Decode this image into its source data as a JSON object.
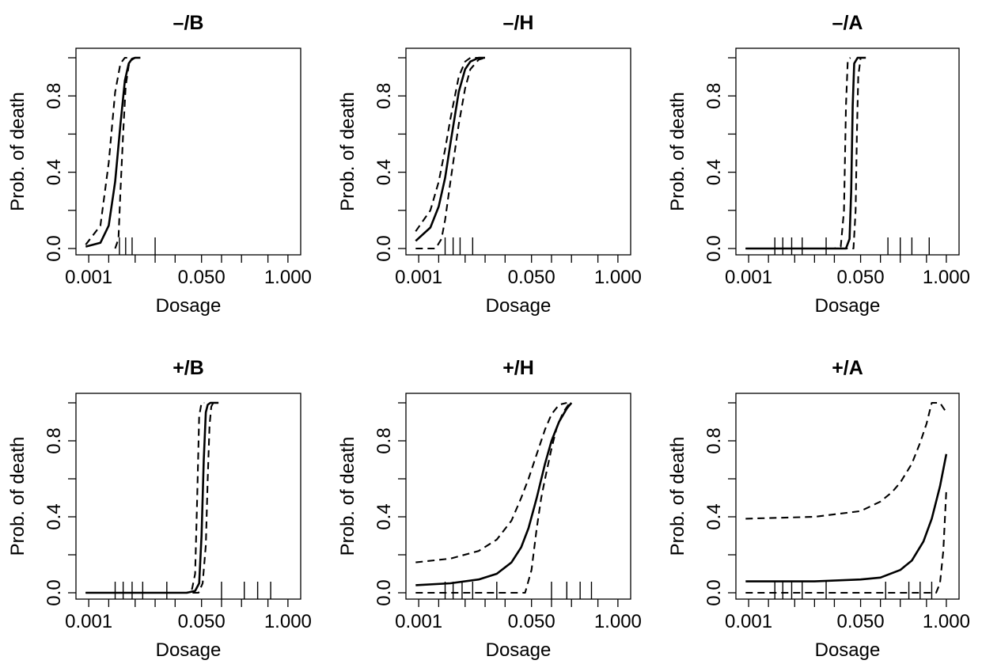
{
  "figure": {
    "xlabel": "Dosage",
    "ylabel": "Prob. of death",
    "x_tick_labels": [
      "0.001",
      "0.050",
      "1.000"
    ],
    "y_tick_labels": [
      "0.0",
      "0.4",
      "0.8"
    ]
  },
  "chart_data": [
    {
      "type": "line",
      "title": "–/B",
      "xlabel": "Dosage",
      "ylabel": "Prob. of death",
      "x_scale": "log",
      "xlim": [
        0.0008,
        1.25
      ],
      "ylim": [
        0,
        1
      ],
      "x_ticks": [
        0.001,
        0.05,
        1.0
      ],
      "y_ticks": [
        0.0,
        0.4,
        0.8
      ],
      "series": [
        {
          "style": "solid",
          "x": [
            0.0009,
            0.0015,
            0.002,
            0.0025,
            0.003,
            0.0035,
            0.004,
            0.0045,
            0.005,
            0.006
          ],
          "y": [
            0.01,
            0.03,
            0.12,
            0.35,
            0.65,
            0.88,
            0.97,
            0.995,
            1.0,
            1.0
          ]
        },
        {
          "style": "dashed",
          "x": [
            0.0009,
            0.0015,
            0.002,
            0.0025,
            0.003,
            0.0035,
            0.004
          ],
          "y": [
            0.02,
            0.12,
            0.45,
            0.82,
            0.97,
            1.0,
            1.0
          ]
        },
        {
          "style": "dashed",
          "x": [
            0.0025,
            0.0028,
            0.003,
            0.0033,
            0.0036,
            0.004,
            0.0045,
            0.005,
            0.006
          ],
          "y": [
            0.0,
            0.05,
            0.3,
            0.6,
            0.85,
            0.96,
            0.99,
            1.0,
            1.0
          ]
        }
      ],
      "rug": [
        0.0029,
        0.0036,
        0.0045,
        0.01
      ]
    },
    {
      "type": "line",
      "title": "–/H",
      "xlabel": "Dosage",
      "ylabel": "Prob. of death",
      "x_scale": "log",
      "xlim": [
        0.0008,
        1.25
      ],
      "ylim": [
        0,
        1
      ],
      "x_ticks": [
        0.001,
        0.05,
        1.0
      ],
      "y_ticks": [
        0.0,
        0.4,
        0.8
      ],
      "series": [
        {
          "style": "solid",
          "x": [
            0.0009,
            0.0015,
            0.002,
            0.0025,
            0.003,
            0.004,
            0.005,
            0.006,
            0.008,
            0.01
          ],
          "y": [
            0.04,
            0.11,
            0.22,
            0.37,
            0.55,
            0.82,
            0.94,
            0.98,
            1.0,
            1.0
          ]
        },
        {
          "style": "dashed",
          "x": [
            0.0009,
            0.0015,
            0.002,
            0.0025,
            0.003,
            0.004,
            0.005,
            0.006,
            0.008
          ],
          "y": [
            0.09,
            0.2,
            0.35,
            0.52,
            0.68,
            0.9,
            0.98,
            1.0,
            1.0
          ]
        },
        {
          "style": "dashed",
          "x": [
            0.0009,
            0.0018,
            0.0022,
            0.0025,
            0.003,
            0.004,
            0.005,
            0.006,
            0.008,
            0.01
          ],
          "y": [
            0.0,
            0.0,
            0.05,
            0.15,
            0.35,
            0.65,
            0.84,
            0.94,
            0.99,
            1.0
          ]
        }
      ],
      "rug": [
        0.0025,
        0.0033,
        0.0042,
        0.0065
      ]
    },
    {
      "type": "line",
      "title": "–/A",
      "xlabel": "Dosage",
      "ylabel": "Prob. of death",
      "x_scale": "log",
      "xlim": [
        0.0008,
        1.25
      ],
      "ylim": [
        0,
        1
      ],
      "x_ticks": [
        0.001,
        0.05,
        1.0
      ],
      "y_ticks": [
        0.0,
        0.4,
        0.8
      ],
      "series": [
        {
          "style": "solid",
          "x": [
            0.0009,
            0.02,
            0.03,
            0.034,
            0.036,
            0.038,
            0.04,
            0.045,
            0.06
          ],
          "y": [
            0.0,
            0.0,
            0.0,
            0.05,
            0.3,
            0.75,
            0.97,
            1.0,
            1.0
          ]
        },
        {
          "style": "dashed",
          "x": [
            0.0009,
            0.02,
            0.025,
            0.028,
            0.03,
            0.032,
            0.035
          ],
          "y": [
            0.0,
            0.0,
            0.01,
            0.2,
            0.75,
            0.99,
            1.0
          ]
        },
        {
          "style": "dashed",
          "x": [
            0.0009,
            0.03,
            0.039,
            0.042,
            0.044,
            0.046,
            0.05,
            0.06
          ],
          "y": [
            0.0,
            0.0,
            0.0,
            0.2,
            0.6,
            0.9,
            1.0,
            1.0
          ]
        }
      ],
      "rug": [
        0.0025,
        0.0033,
        0.0045,
        0.0065,
        0.015,
        0.13,
        0.2,
        0.3,
        0.55
      ]
    },
    {
      "type": "line",
      "title": "+/B",
      "xlabel": "Dosage",
      "ylabel": "Prob. of death",
      "x_scale": "log",
      "xlim": [
        0.0008,
        1.25
      ],
      "ylim": [
        0,
        1
      ],
      "x_ticks": [
        0.001,
        0.05,
        1.0
      ],
      "y_ticks": [
        0.0,
        0.4,
        0.8
      ],
      "series": [
        {
          "style": "solid",
          "x": [
            0.0009,
            0.03,
            0.04,
            0.046,
            0.05,
            0.054,
            0.058,
            0.062,
            0.068,
            0.09
          ],
          "y": [
            0.0,
            0.0,
            0.01,
            0.05,
            0.3,
            0.7,
            0.95,
            0.99,
            1.0,
            1.0
          ]
        },
        {
          "style": "dashed",
          "x": [
            0.0009,
            0.03,
            0.036,
            0.04,
            0.043,
            0.046,
            0.05,
            0.055
          ],
          "y": [
            0.0,
            0.0,
            0.02,
            0.1,
            0.5,
            0.93,
            1.0,
            1.0
          ]
        },
        {
          "style": "dashed",
          "x": [
            0.0009,
            0.045,
            0.052,
            0.058,
            0.062,
            0.066,
            0.07,
            0.075,
            0.09
          ],
          "y": [
            0.0,
            0.0,
            0.05,
            0.25,
            0.6,
            0.88,
            0.98,
            1.0,
            1.0
          ]
        }
      ],
      "rug": [
        0.0025,
        0.0033,
        0.0045,
        0.0065,
        0.015,
        0.1,
        0.22,
        0.35,
        0.55
      ]
    },
    {
      "type": "line",
      "title": "+/H",
      "xlabel": "Dosage",
      "ylabel": "Prob. of death",
      "x_scale": "log",
      "xlim": [
        0.0008,
        1.25
      ],
      "ylim": [
        0,
        1
      ],
      "x_ticks": [
        0.001,
        0.05,
        1.0
      ],
      "y_ticks": [
        0.0,
        0.4,
        0.8
      ],
      "series": [
        {
          "style": "solid",
          "x": [
            0.0009,
            0.003,
            0.008,
            0.015,
            0.025,
            0.035,
            0.045,
            0.06,
            0.08,
            0.1,
            0.13,
            0.17,
            0.2
          ],
          "y": [
            0.04,
            0.05,
            0.07,
            0.1,
            0.16,
            0.24,
            0.34,
            0.5,
            0.68,
            0.8,
            0.9,
            0.97,
            1.0
          ]
        },
        {
          "style": "dashed",
          "x": [
            0.0009,
            0.003,
            0.008,
            0.015,
            0.025,
            0.035,
            0.045,
            0.06,
            0.08,
            0.1,
            0.13,
            0.17
          ],
          "y": [
            0.16,
            0.18,
            0.22,
            0.28,
            0.38,
            0.5,
            0.6,
            0.73,
            0.86,
            0.94,
            0.99,
            1.0
          ]
        },
        {
          "style": "dashed",
          "x": [
            0.0009,
            0.04,
            0.05,
            0.06,
            0.07,
            0.08,
            0.1,
            0.12,
            0.15,
            0.18,
            0.2
          ],
          "y": [
            0.0,
            0.0,
            0.12,
            0.34,
            0.5,
            0.6,
            0.76,
            0.87,
            0.95,
            0.99,
            1.0
          ]
        }
      ],
      "rug": [
        0.0025,
        0.0033,
        0.0045,
        0.0065,
        0.015,
        0.1,
        0.17,
        0.27,
        0.4
      ]
    },
    {
      "type": "line",
      "title": "+/A",
      "xlabel": "Dosage",
      "ylabel": "Prob. of death",
      "x_scale": "log",
      "xlim": [
        0.0008,
        1.25
      ],
      "ylim": [
        0,
        1
      ],
      "x_ticks": [
        0.001,
        0.05,
        1.0
      ],
      "y_ticks": [
        0.0,
        0.4,
        0.8
      ],
      "series": [
        {
          "style": "solid",
          "x": [
            0.0009,
            0.01,
            0.05,
            0.1,
            0.2,
            0.3,
            0.45,
            0.6,
            0.8,
            1.0
          ],
          "y": [
            0.06,
            0.06,
            0.07,
            0.08,
            0.12,
            0.17,
            0.27,
            0.39,
            0.56,
            0.73
          ]
        },
        {
          "style": "dashed",
          "x": [
            0.0009,
            0.01,
            0.05,
            0.1,
            0.15,
            0.2,
            0.3,
            0.4,
            0.5,
            0.6,
            0.8,
            1.0
          ],
          "y": [
            0.39,
            0.4,
            0.43,
            0.48,
            0.53,
            0.58,
            0.68,
            0.79,
            0.89,
            1.0,
            1.0,
            0.95
          ]
        },
        {
          "style": "dashed",
          "x": [
            0.0009,
            0.7,
            0.8,
            0.9,
            1.0
          ],
          "y": [
            0.0,
            0.0,
            0.05,
            0.22,
            0.54
          ]
        }
      ],
      "rug": [
        0.0025,
        0.0033,
        0.0045,
        0.0065,
        0.015,
        0.12,
        0.27,
        0.4,
        0.6
      ]
    }
  ]
}
